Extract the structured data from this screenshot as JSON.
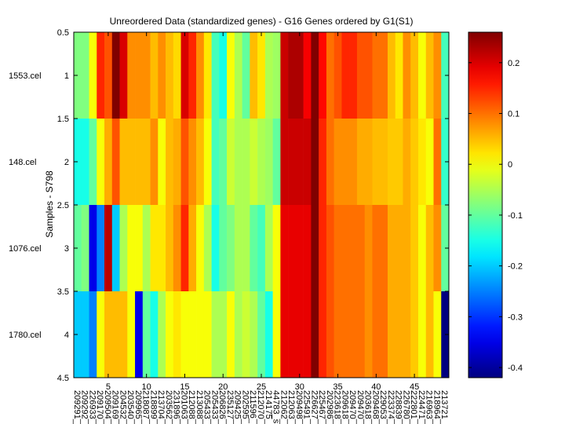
{
  "chart_data": {
    "type": "heatmap",
    "title": "Unreordered Data (standardized genes) - G16 Genes ordered by G1(S1)",
    "ylabel": "Samples - S798",
    "xlim": [
      0.5,
      49.5
    ],
    "ylim": [
      0.5,
      4.5
    ],
    "x_ticks": [
      5,
      10,
      15,
      20,
      25,
      30,
      35,
      40,
      45
    ],
    "y_ticks": [
      0.5,
      1,
      1.5,
      2,
      2.5,
      3,
      3.5,
      4,
      4.5
    ],
    "row_labels": [
      "1553.cel",
      "148.cel",
      "1076.cel",
      "1780.cel"
    ],
    "col_labels": [
      "209291_",
      "209292_",
      "226933_",
      "209170_",
      "209504_",
      "209169_",
      "204532_",
      "203540_",
      "209965_",
      "218087_",
      "218899_",
      "213704_",
      "203562_",
      "231896_",
      "201063_",
      "212088_",
      "213088_",
      "205433_",
      "205433_",
      "206826_",
      "235127_",
      "209425_",
      "202595_",
      "211596_",
      "212070_",
      "214175_",
      "44783_s",
      "212062_",
      "212063_",
      "209498_",
      "225491_",
      "226627_",
      "225467_",
      "202986_",
      "223618_",
      "209618_",
      "209470_",
      "209470_",
      "203618_",
      "209468_",
      "229053_",
      "223374_",
      "228839_",
      "226780_",
      "222801_",
      "224471_",
      "216963_",
      "218964_",
      "213721_"
    ],
    "values": [
      [
        -0.08,
        -0.08,
        0.0,
        0.15,
        0.12,
        0.26,
        0.2,
        0.08,
        0.08,
        0.08,
        0.05,
        0.08,
        0.05,
        0.03,
        0.2,
        0.15,
        0.08,
        0.02,
        -0.12,
        -0.15,
        0.0,
        -0.05,
        -0.1,
        0.05,
        0.02,
        -0.05,
        -0.06,
        0.21,
        0.23,
        0.23,
        0.18,
        0.26,
        0.17,
        0.1,
        0.12,
        0.15,
        0.15,
        0.12,
        0.12,
        0.1,
        0.1,
        0.05,
        0.02,
        0.08,
        0.05,
        0.0,
        0.05,
        0.08,
        -0.12
      ],
      [
        -0.15,
        -0.15,
        -0.1,
        0.0,
        0.06,
        0.12,
        0.05,
        0.05,
        0.05,
        0.05,
        0.08,
        0.0,
        0.05,
        0.06,
        0.12,
        0.08,
        0.05,
        0.0,
        -0.12,
        -0.1,
        -0.03,
        -0.05,
        -0.05,
        -0.03,
        -0.05,
        -0.06,
        -0.1,
        0.21,
        0.21,
        0.21,
        0.21,
        0.26,
        0.15,
        0.1,
        0.08,
        0.08,
        0.08,
        0.06,
        0.06,
        0.05,
        0.05,
        0.04,
        0.04,
        0.06,
        0.04,
        0.02,
        0.0,
        0.1,
        -0.13
      ],
      [
        -0.1,
        -0.08,
        -0.35,
        -0.25,
        0.22,
        -0.2,
        -0.05,
        0.0,
        0.0,
        -0.05,
        0.02,
        0.02,
        0.05,
        0.08,
        0.15,
        0.06,
        0.0,
        -0.05,
        -0.15,
        -0.1,
        -0.08,
        -0.05,
        -0.05,
        -0.1,
        -0.12,
        -0.05,
        0.0,
        0.19,
        0.19,
        0.19,
        0.19,
        0.26,
        0.15,
        0.12,
        0.1,
        0.1,
        0.1,
        0.1,
        0.08,
        0.1,
        0.1,
        0.06,
        0.06,
        0.06,
        0.04,
        0.0,
        0.05,
        0.08,
        -0.1
      ],
      [
        -0.2,
        -0.2,
        -0.25,
        0.0,
        0.05,
        0.05,
        0.05,
        0.0,
        -0.35,
        -0.1,
        -0.15,
        -0.05,
        0.0,
        0.02,
        0.0,
        0.0,
        0.0,
        0.0,
        -0.05,
        -0.05,
        0.0,
        -0.05,
        -0.03,
        -0.05,
        -0.1,
        -0.15,
        0.0,
        0.19,
        0.19,
        0.19,
        0.19,
        0.26,
        0.15,
        0.12,
        0.1,
        0.1,
        0.1,
        0.1,
        0.08,
        0.1,
        0.1,
        0.06,
        0.06,
        0.06,
        0.04,
        0.0,
        0.05,
        0.0,
        -0.42
      ]
    ],
    "colorbar": {
      "min": -0.42,
      "max": 0.26,
      "ticks": [
        -0.4,
        -0.3,
        -0.2,
        -0.1,
        0,
        0.1,
        0.2
      ],
      "colormap": "jet"
    }
  }
}
